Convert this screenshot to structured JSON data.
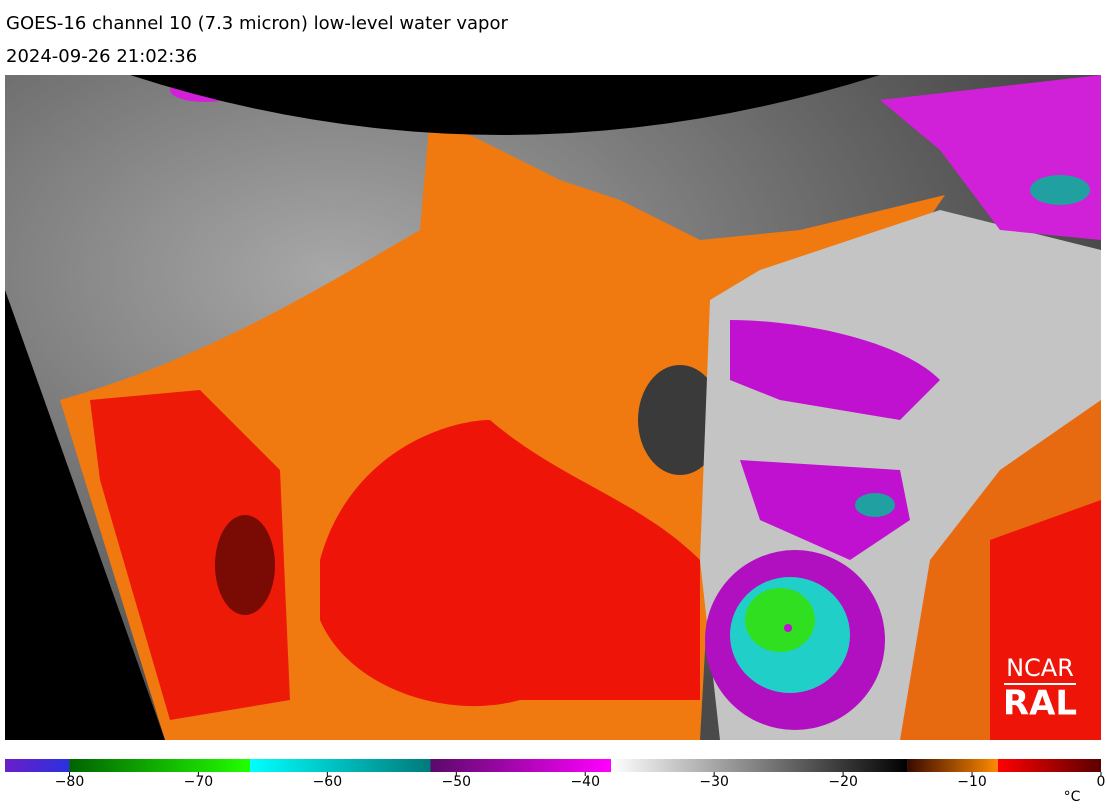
{
  "header": {
    "title": "GOES-16 channel 10 (7.3 micron) low-level water vapor",
    "timestamp": "2024-09-26 21:02:36"
  },
  "colorbar": {
    "lim": [
      -85,
      0
    ],
    "ticks": [
      {
        "value": -80,
        "label": "−80"
      },
      {
        "value": -70,
        "label": "−70"
      },
      {
        "value": -60,
        "label": "−60"
      },
      {
        "value": -50,
        "label": "−50"
      },
      {
        "value": -40,
        "label": "−40"
      },
      {
        "value": -30,
        "label": "−30"
      },
      {
        "value": -20,
        "label": "−20"
      },
      {
        "value": -10,
        "label": "−10"
      },
      0
    ],
    "unit": "°C",
    "segments": [
      {
        "from": -85,
        "to": -80,
        "colors": [
          "#6a1fc8",
          "#2a30e0"
        ]
      },
      {
        "from": -80,
        "to": -66,
        "colors": [
          "#006400",
          "#22ff00"
        ]
      },
      {
        "from": -66,
        "to": -52,
        "colors": [
          "#00ffff",
          "#007a7a"
        ]
      },
      {
        "from": -52,
        "to": -38,
        "colors": [
          "#5a0a6a",
          "#ff00ff"
        ]
      },
      {
        "from": -38,
        "to": -15,
        "colors": [
          "#ffffff",
          "#000000"
        ]
      },
      {
        "from": -15,
        "to": -8,
        "colors": [
          "#3a0a00",
          "#ff8a00"
        ]
      },
      {
        "from": -8,
        "to": 0,
        "colors": [
          "#ff0000",
          "#5a0000"
        ]
      }
    ]
  },
  "logo": {
    "line1": "NCAR",
    "line2": "RAL"
  }
}
